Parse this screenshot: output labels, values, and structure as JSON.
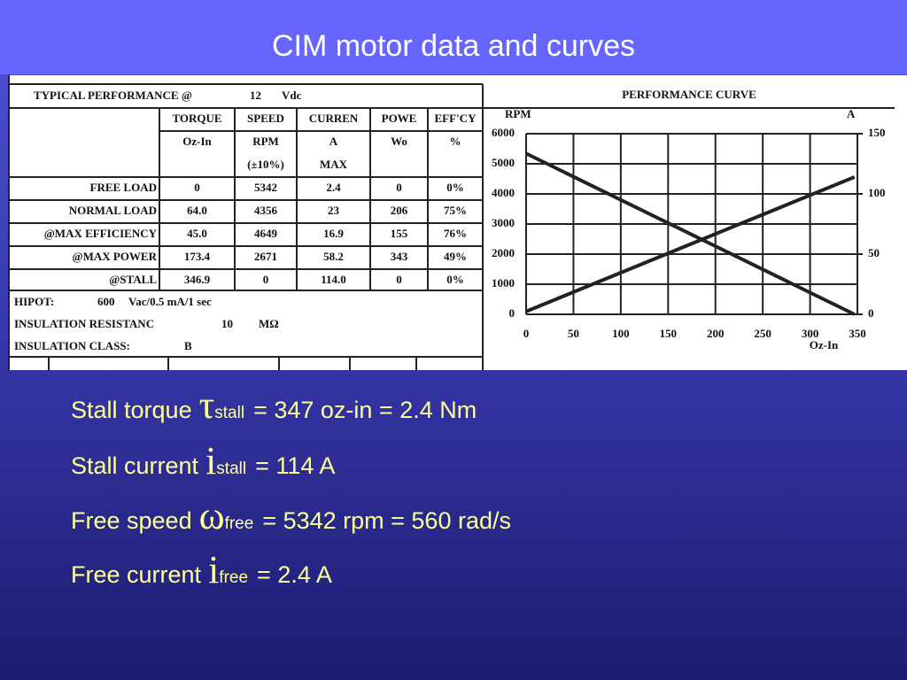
{
  "title": "CIM motor data and curves",
  "table": {
    "heading": "TYPICAL PERFORMANCE @",
    "voltage": "12",
    "voltage_unit": "Vdc",
    "columns": [
      [
        "TORQUE",
        "Oz-In"
      ],
      [
        "SPEED",
        "RPM",
        "(±10%)"
      ],
      [
        "CURREN",
        "A",
        "MAX"
      ],
      [
        "POWE",
        "Wo"
      ],
      [
        "EFF'CY",
        "%"
      ]
    ],
    "rows": [
      [
        "FREE LOAD",
        "0",
        "5342",
        "2.4",
        "0",
        "0%"
      ],
      [
        "NORMAL LOAD",
        "64.0",
        "4356",
        "23",
        "206",
        "75%"
      ],
      [
        "@MAX EFFICIENCY",
        "45.0",
        "4649",
        "16.9",
        "155",
        "76%"
      ],
      [
        "@MAX POWER",
        "173.4",
        "2671",
        "58.2",
        "343",
        "49%"
      ],
      [
        "@STALL",
        "346.9",
        "0",
        "114.0",
        "0",
        "0%"
      ]
    ],
    "notes": [
      [
        "HIPOT:",
        "600",
        "Vac/0.5 mA/1 sec"
      ],
      [
        "INSULATION RESISTANC",
        "10",
        "MΩ"
      ],
      [
        "INSULATION CLASS:",
        "B"
      ]
    ]
  },
  "curve": {
    "title": "PERFORMANCE CURVE",
    "y_label": "RPM",
    "y2_label": "A",
    "x_label": "Oz-In",
    "xlim": [
      0,
      350
    ],
    "ylim": [
      0,
      6000
    ],
    "y2lim": [
      0,
      150
    ],
    "xticks": [
      0,
      50,
      100,
      150,
      200,
      250,
      300,
      350
    ],
    "yticks": [
      0,
      1000,
      2000,
      3000,
      4000,
      5000,
      6000
    ],
    "y2ticks": [
      0,
      50,
      100,
      150
    ],
    "speed": {
      "x": [
        0,
        346.9
      ],
      "values": [
        5342,
        0
      ]
    },
    "current": {
      "x": [
        0,
        346.9
      ],
      "values": [
        2.4,
        114
      ]
    }
  },
  "facts": [
    {
      "label": "Stall torque",
      "symbol": "τ",
      "subscript": "stall",
      "value": "= 347 oz-in = 2.4 Nm"
    },
    {
      "label": "Stall current",
      "symbol": "i",
      "subscript": "stall",
      "value": "= 114 A"
    },
    {
      "label": "Free speed",
      "symbol": "ω",
      "subscript": "free",
      "value": "= 5342 rpm = 560 rad/s"
    },
    {
      "label": "Free current",
      "symbol": "i",
      "subscript": "free",
      "value": "= 2.4 A"
    }
  ]
}
